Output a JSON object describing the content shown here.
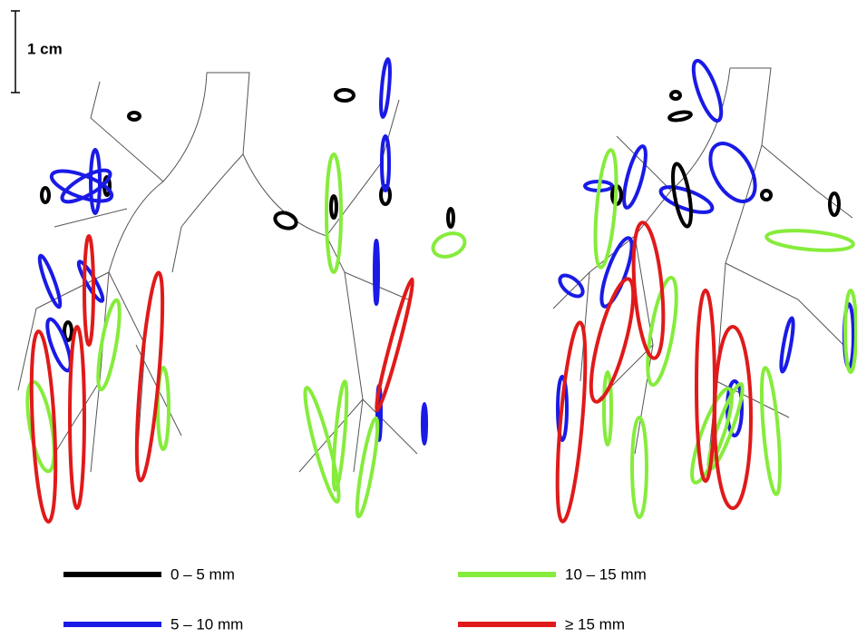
{
  "scale_bar": {
    "label": "1 cm"
  },
  "legend": [
    {
      "label": "0 – 5 mm",
      "color": "#000000"
    },
    {
      "label": "5 – 10 mm",
      "color": "#1a1ae6"
    },
    {
      "label": "10 – 15 mm",
      "color": "#86ec3c"
    },
    {
      "label": "≥ 15 mm",
      "color": "#e01a1a"
    }
  ]
}
